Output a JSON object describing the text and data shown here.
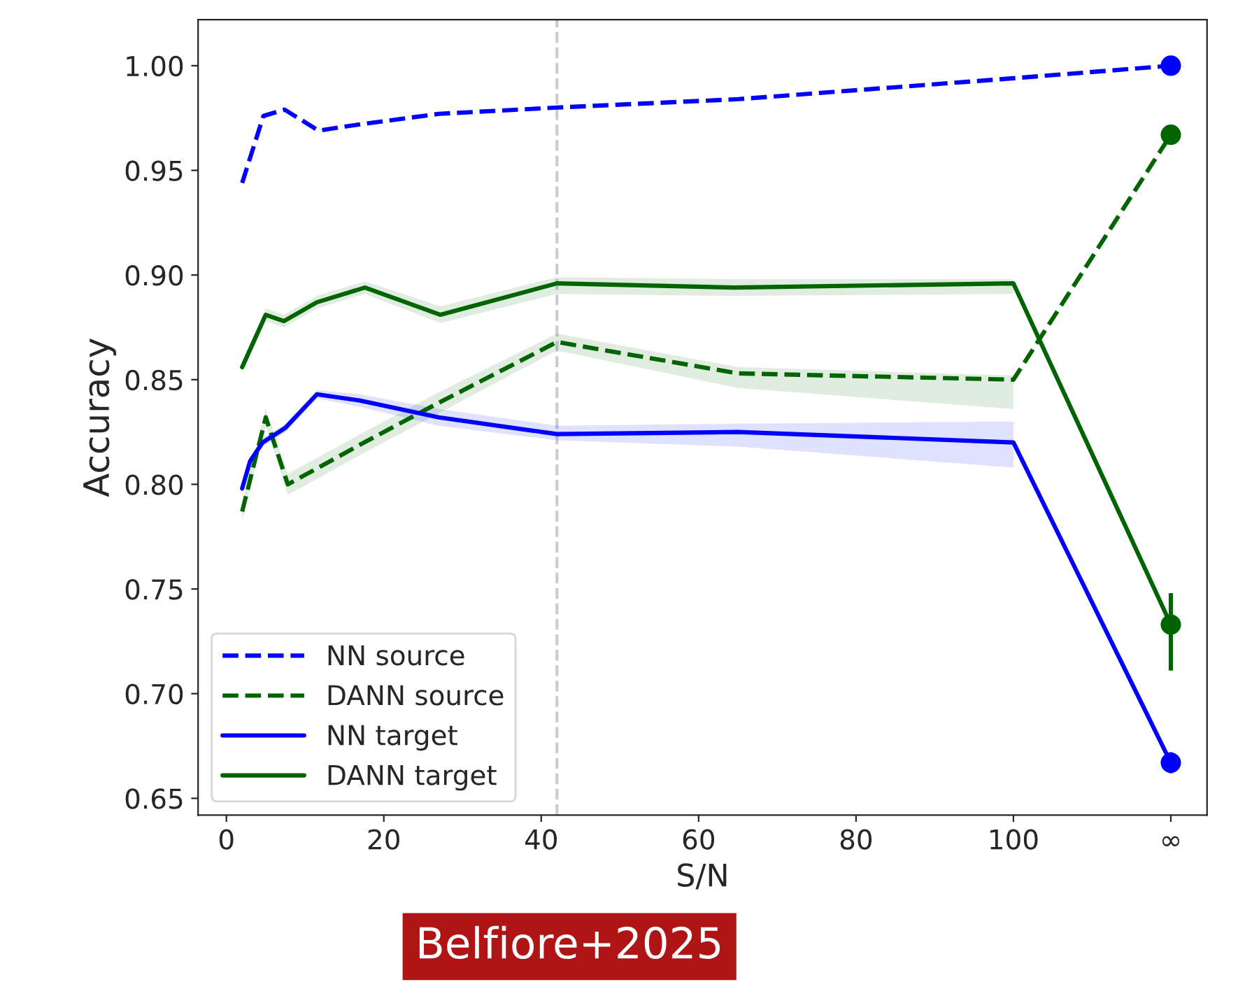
{
  "chart_data": {
    "type": "line",
    "xlabel": "S/N",
    "ylabel": "Accuracy",
    "xlim": [
      -3.6,
      124.6
    ],
    "ylim": [
      0.642,
      1.022
    ],
    "xticks": [
      0,
      20,
      40,
      60,
      80,
      100,
      {
        "value": 120,
        "label": "∞"
      }
    ],
    "yticks": [
      {
        "value": 0.65,
        "label": "0.65"
      },
      {
        "value": 0.7,
        "label": "0.70"
      },
      {
        "value": 0.75,
        "label": "0.75"
      },
      {
        "value": 0.8,
        "label": "0.80"
      },
      {
        "value": 0.85,
        "label": "0.85"
      },
      {
        "value": 0.9,
        "label": "0.90"
      },
      {
        "value": 0.95,
        "label": "0.95"
      },
      {
        "value": 1.0,
        "label": "1.00"
      }
    ],
    "grid": false,
    "legend": "lower left",
    "series": [
      {
        "name": "NN source",
        "color": "#0000ff",
        "line_style": "dashed",
        "x": [
          2,
          4.7,
          7.4,
          11.7,
          17,
          27,
          42,
          65,
          100,
          120
        ],
        "values": [
          0.944,
          0.976,
          0.979,
          0.969,
          0.972,
          0.977,
          0.98,
          0.984,
          0.994,
          1.0
        ]
      },
      {
        "name": "DANN source",
        "color": "#006400",
        "line_style": "dashed",
        "x": [
          2,
          5,
          7.8,
          11.7,
          17,
          27,
          42,
          65,
          100,
          120
        ],
        "values": [
          0.787,
          0.832,
          0.8,
          0.808,
          0.819,
          0.839,
          0.868,
          0.853,
          0.85,
          0.967
        ],
        "lower": [
          0.783,
          0.828,
          0.795,
          0.803,
          0.814,
          0.834,
          0.864,
          0.846,
          0.836,
          null
        ],
        "upper": [
          0.791,
          0.836,
          0.805,
          0.813,
          0.824,
          0.844,
          0.872,
          0.856,
          0.852,
          null
        ]
      },
      {
        "name": "NN target",
        "color": "#0000ff",
        "line_style": "solid",
        "x": [
          2,
          3,
          4.6,
          7.5,
          11.5,
          17,
          27,
          42,
          65,
          100,
          120
        ],
        "values": [
          0.798,
          0.811,
          0.82,
          0.827,
          0.843,
          0.84,
          0.832,
          0.824,
          0.825,
          0.82,
          0.667
        ],
        "lower": [
          0.796,
          0.809,
          0.818,
          0.825,
          0.841,
          0.837,
          0.828,
          0.821,
          0.818,
          0.808,
          null
        ],
        "upper": [
          0.8,
          0.813,
          0.822,
          0.829,
          0.845,
          0.843,
          0.836,
          0.828,
          0.829,
          0.83,
          null
        ]
      },
      {
        "name": "DANN target",
        "color": "#006400",
        "line_style": "solid",
        "x": [
          2,
          5,
          7.3,
          11.5,
          17.6,
          27.2,
          42,
          64.5,
          100,
          120
        ],
        "values": [
          0.856,
          0.881,
          0.878,
          0.887,
          0.894,
          0.881,
          0.896,
          0.894,
          0.896,
          0.733
        ],
        "lower": [
          0.853,
          0.878,
          0.875,
          0.884,
          0.891,
          0.877,
          0.891,
          0.89,
          0.891,
          null
        ],
        "upper": [
          0.859,
          0.884,
          0.881,
          0.89,
          0.897,
          0.885,
          0.899,
          0.898,
          0.898,
          null
        ]
      },
      {
        "type": "scatter",
        "marker": "circle",
        "color": "#0000ff",
        "x": [
          120
        ],
        "values": [
          1.0
        ]
      },
      {
        "type": "scatter",
        "marker": "circle",
        "color": "#006400",
        "x": [
          120
        ],
        "values": [
          0.967
        ]
      },
      {
        "type": "scatter",
        "marker": "circle",
        "color": "#0000ff",
        "x": [
          120
        ],
        "values": [
          0.667
        ],
        "errors": [
          0.005
        ]
      },
      {
        "type": "scatter",
        "marker": "circle",
        "color": "#006400",
        "x": [
          120
        ],
        "values": [
          0.733
        ],
        "errors": [
          [
            0.711,
            0.748
          ]
        ]
      }
    ],
    "ref_lines": [
      {
        "axis": "x",
        "value": 42,
        "color": "#cccccc",
        "line_style": "dashed"
      }
    ],
    "annotations": [
      "Belfiore+2025"
    ]
  }
}
